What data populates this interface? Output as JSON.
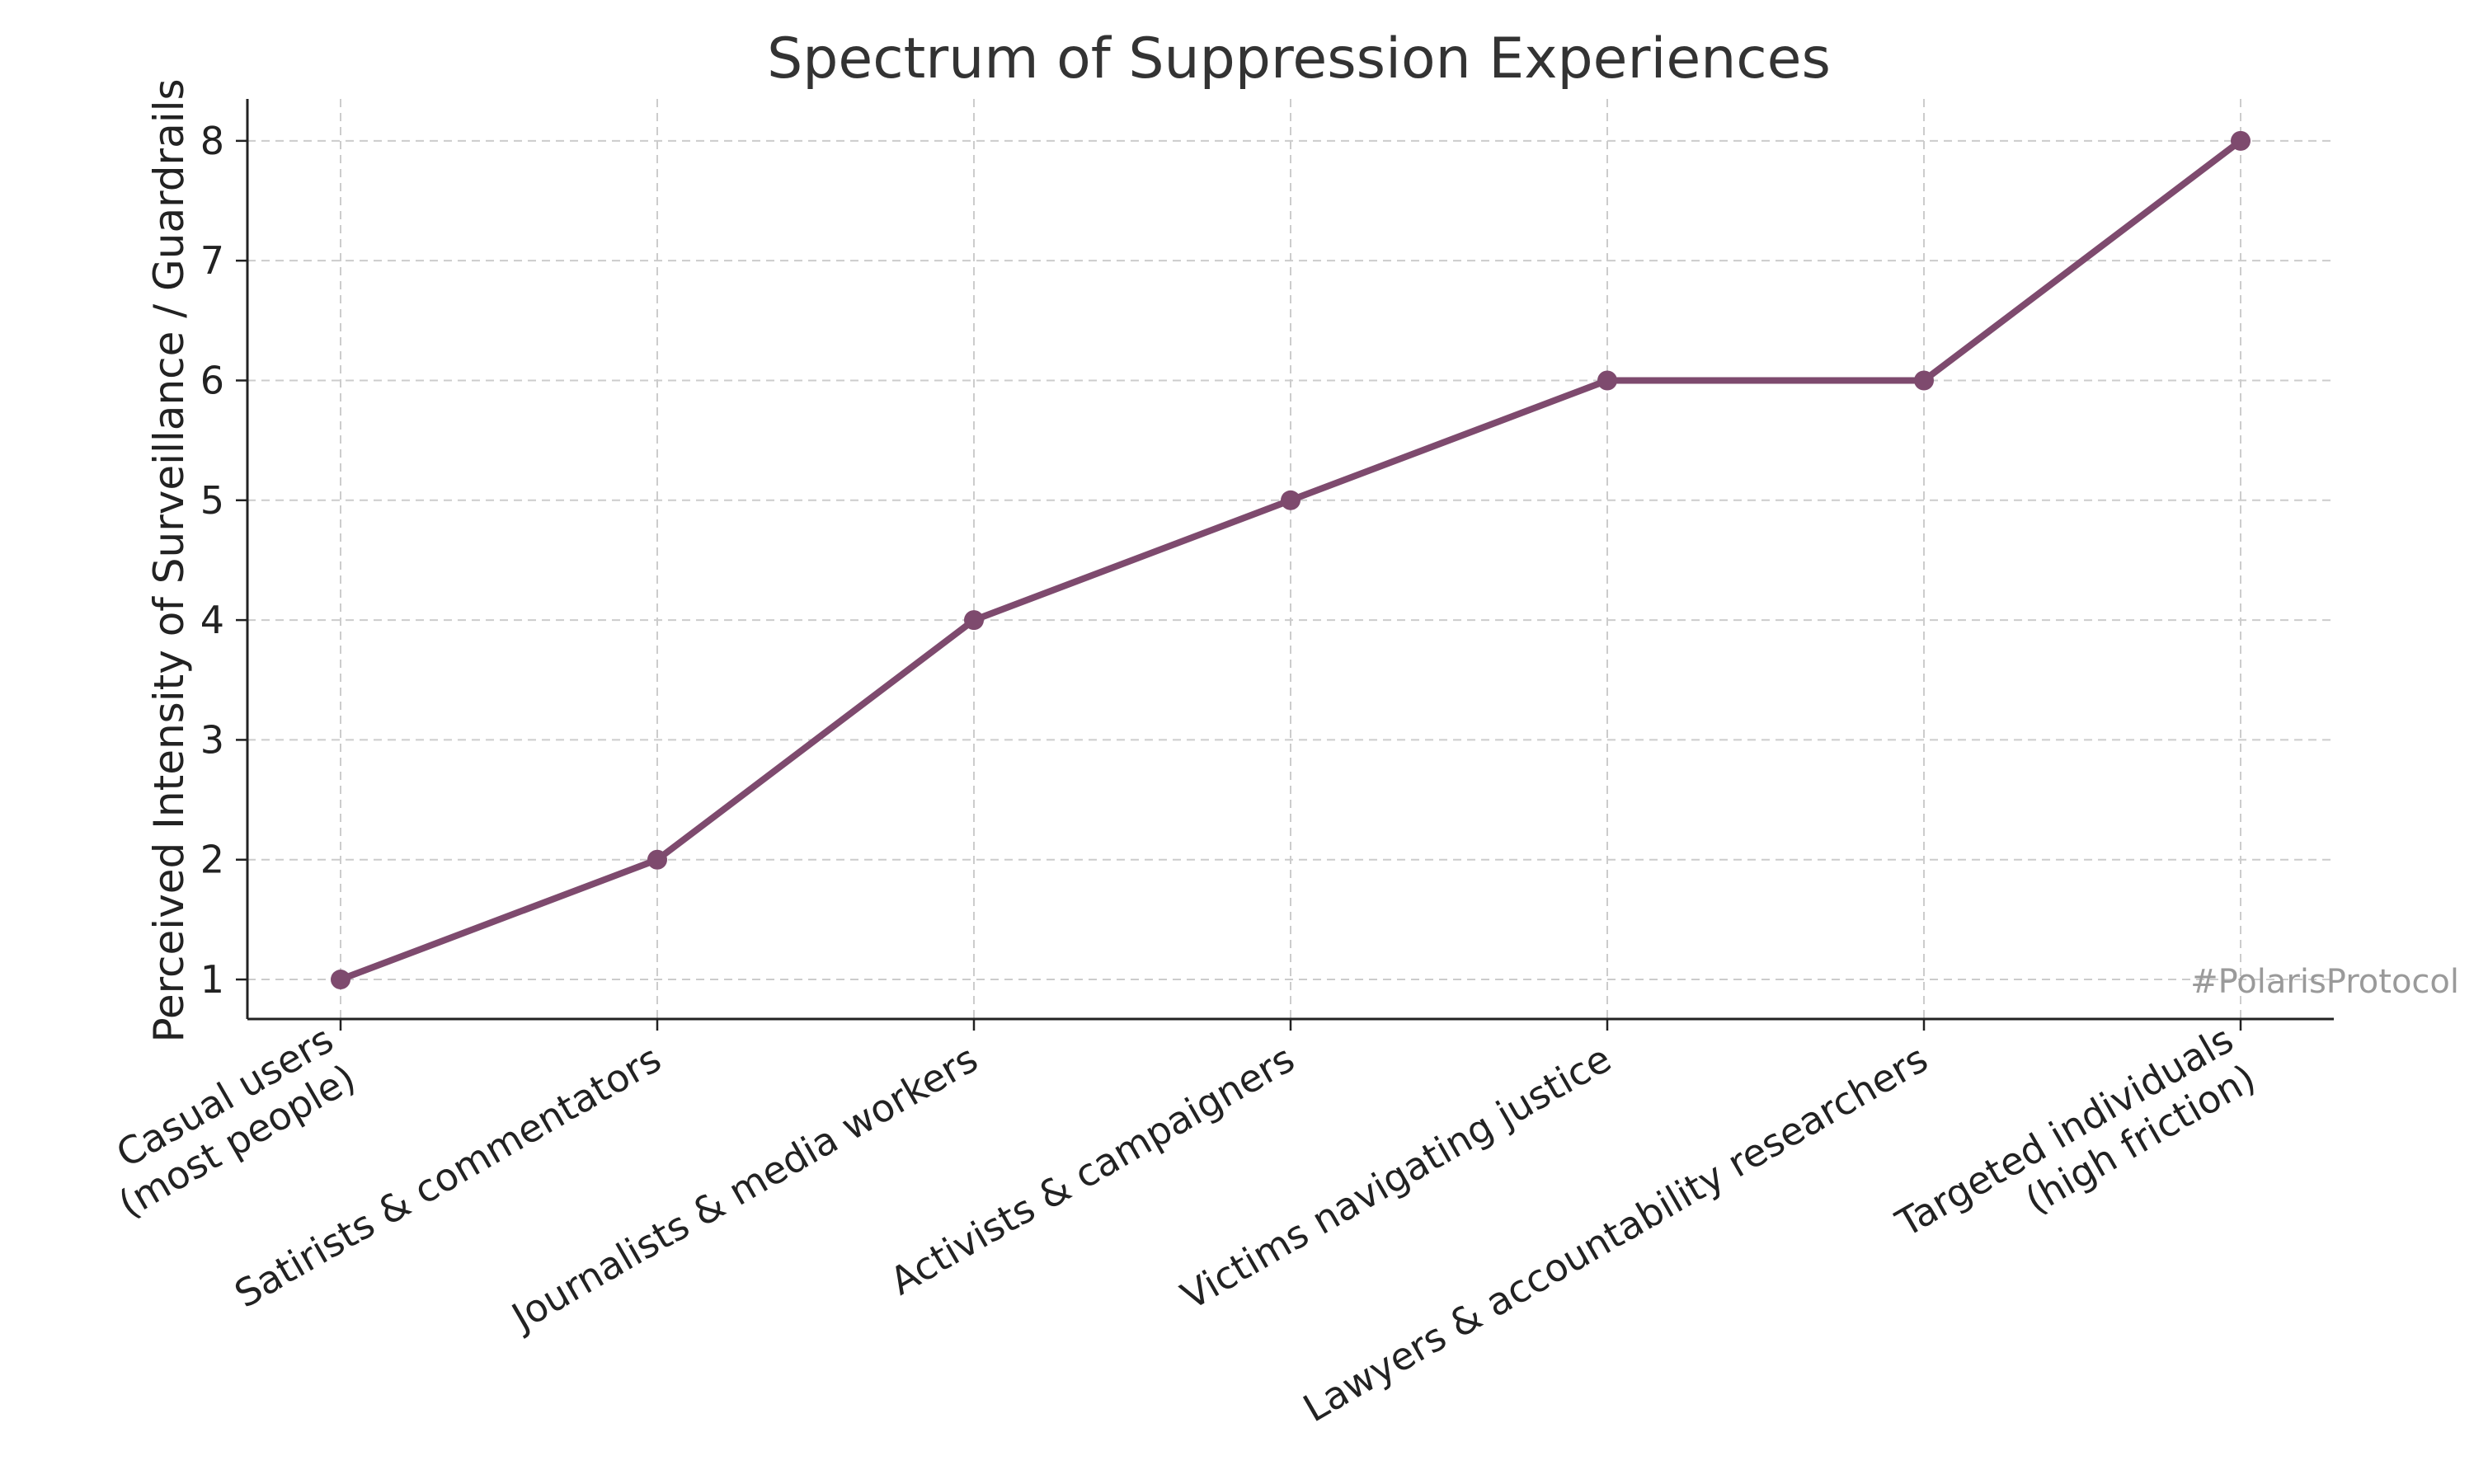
{
  "chart_data": {
    "type": "line",
    "title": "Spectrum of Suppression Experiences",
    "xlabel": "",
    "ylabel": "Perceived Intensity of Surveillance / Guardrails",
    "categories": [
      [
        "Casual users",
        "(most people)"
      ],
      [
        "Satirists & commentators"
      ],
      [
        "Journalists & media workers"
      ],
      [
        "Activists & campaigners"
      ],
      [
        "Victims navigating justice"
      ],
      [
        "Lawyers & accountability researchers"
      ],
      [
        "Targeted individuals",
        "(high friction)"
      ]
    ],
    "series": [
      {
        "values": [
          1,
          2,
          4,
          5,
          6,
          6,
          8
        ],
        "color": "#7e4a6e"
      }
    ],
    "ylim": [
      0.67,
      8.35
    ],
    "yticks": [
      1,
      2,
      3,
      4,
      5,
      6,
      7,
      8
    ],
    "grid": true,
    "legend": "none"
  },
  "watermark": "#PolarisProtocol"
}
